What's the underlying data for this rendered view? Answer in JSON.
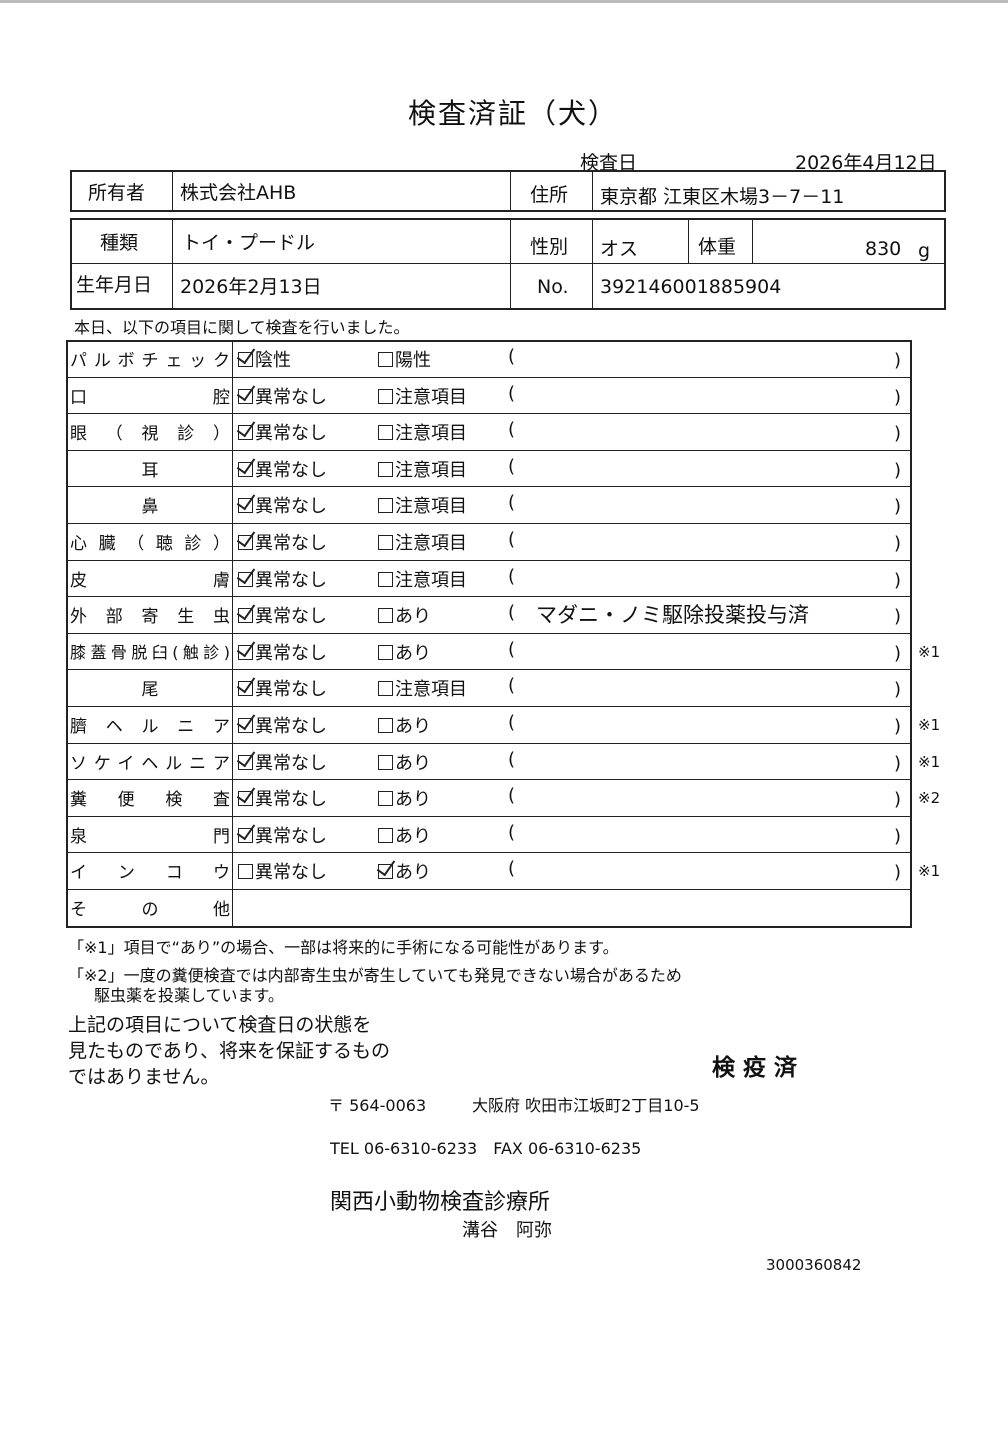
{
  "title": "検査済証（犬）",
  "exam_date_label": "検査日",
  "exam_date": "2026年4月12日",
  "owner": {
    "label": "所有者",
    "value": "株式会社AHB"
  },
  "address": {
    "label": "住所",
    "value": "東京都 江東区木場3－7－11"
  },
  "breed": {
    "label": "種類",
    "value": "トイ・プードル"
  },
  "sex": {
    "label": "性別",
    "value": "オス"
  },
  "weight": {
    "label": "体重",
    "value": "830",
    "unit": "g"
  },
  "birth": {
    "label": "生年月日",
    "value": "2026年2月13日"
  },
  "no": {
    "label": "No.",
    "value": "392146001885904"
  },
  "intro": "本日、以下の項目に関して検査を行いました。",
  "items": [
    {
      "label": "パルボチェック",
      "opt1": "陰性",
      "opt2": "陽性",
      "checked": 1,
      "remark": "",
      "note": ""
    },
    {
      "label": "口腔",
      "opt1": "異常なし",
      "opt2": "注意項目",
      "checked": 1,
      "remark": "",
      "note": ""
    },
    {
      "label": "眼（視診）",
      "opt1": "異常なし",
      "opt2": "注意項目",
      "checked": 1,
      "remark": "",
      "note": ""
    },
    {
      "label": "耳",
      "opt1": "異常なし",
      "opt2": "注意項目",
      "checked": 1,
      "remark": "",
      "note": ""
    },
    {
      "label": "鼻",
      "opt1": "異常なし",
      "opt2": "注意項目",
      "checked": 1,
      "remark": "",
      "note": ""
    },
    {
      "label": "心臓（聴診）",
      "opt1": "異常なし",
      "opt2": "注意項目",
      "checked": 1,
      "remark": "",
      "note": ""
    },
    {
      "label": "皮膚",
      "opt1": "異常なし",
      "opt2": "注意項目",
      "checked": 1,
      "remark": "",
      "note": ""
    },
    {
      "label": "外部寄生虫",
      "opt1": "異常なし",
      "opt2": "あり",
      "checked": 1,
      "remark": "マダニ・ノミ駆除投薬投与済",
      "note": ""
    },
    {
      "label": "膝蓋骨脱臼(触診)",
      "opt1": "異常なし",
      "opt2": "あり",
      "checked": 1,
      "remark": "",
      "note": "※1"
    },
    {
      "label": "尾",
      "opt1": "異常なし",
      "opt2": "注意項目",
      "checked": 1,
      "remark": "",
      "note": ""
    },
    {
      "label": "臍ヘルニア",
      "opt1": "異常なし",
      "opt2": "あり",
      "checked": 1,
      "remark": "",
      "note": "※1"
    },
    {
      "label": "ソケイヘルニア",
      "opt1": "異常なし",
      "opt2": "あり",
      "checked": 1,
      "remark": "",
      "note": "※1"
    },
    {
      "label": "糞便検査",
      "opt1": "異常なし",
      "opt2": "あり",
      "checked": 1,
      "remark": "",
      "note": "※2"
    },
    {
      "label": "泉門",
      "opt1": "異常なし",
      "opt2": "あり",
      "checked": 1,
      "remark": "",
      "note": ""
    },
    {
      "label": "インコウ",
      "opt1": "異常なし",
      "opt2": "あり",
      "checked": 2,
      "remark": "",
      "note": "※1"
    }
  ],
  "other_label": "その他",
  "footnote1": "「※1」項目で“あり”の場合、一部は将来的に手術になる可能性があります。",
  "footnote2a": "「※2」一度の糞便検査では内部寄生虫が寄生していても発見できない場合があるため",
  "footnote2b": "駆虫薬を投薬しています。",
  "disclaimer": [
    "上記の項目について検査日の状態を",
    "見たものであり、将来を保証するもの",
    "ではありません。"
  ],
  "stamp": "検 疫 済",
  "postal": "〒 564-0063",
  "clinic_address": "大阪府 吹田市江坂町2丁目10-5",
  "tel": "TEL 06-6310-6233　FAX 06-6310-6235",
  "clinic_name": "関西小動物検査診療所",
  "doctor": "溝谷　阿弥",
  "doc_number": "3000360842"
}
